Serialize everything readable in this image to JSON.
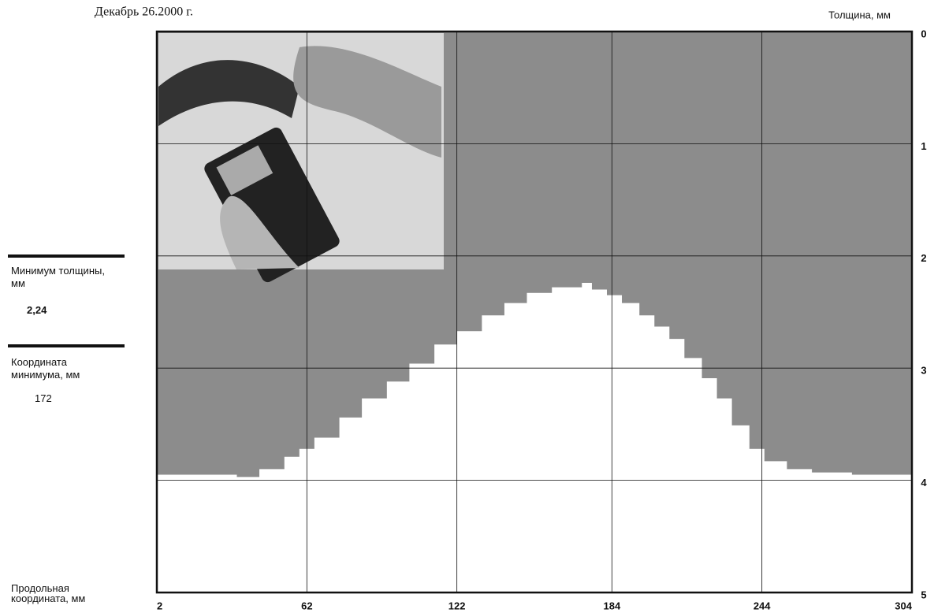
{
  "chart_data": {
    "type": "step-area",
    "date": "Декабрь 26.2000 г.",
    "y_title": "Толщина, мм",
    "x_title": "Продольная координата, мм",
    "summary": {
      "min_label": "Минимум толщины, мм",
      "min_value": "2,24",
      "coord_label": "Координата минимума, мм",
      "coord_value": "172"
    },
    "x": [
      2,
      15,
      34,
      43,
      53,
      59,
      65,
      75,
      84,
      94,
      103,
      113,
      122,
      132,
      141,
      150,
      160,
      172,
      176,
      182,
      188,
      195,
      201,
      207,
      213,
      220,
      226,
      232,
      239,
      245,
      254,
      264,
      280,
      304
    ],
    "values": [
      3.95,
      3.95,
      3.97,
      3.9,
      3.79,
      3.72,
      3.62,
      3.44,
      3.27,
      3.12,
      2.96,
      2.79,
      2.67,
      2.53,
      2.42,
      2.33,
      2.28,
      2.24,
      2.3,
      2.35,
      2.42,
      2.53,
      2.63,
      2.74,
      2.91,
      3.09,
      3.27,
      3.51,
      3.72,
      3.83,
      3.9,
      3.93,
      3.95,
      3.96
    ],
    "color": "#8c8c8c",
    "xlim": [
      2,
      304
    ],
    "xticks": [
      2,
      62,
      122,
      184,
      244,
      304
    ],
    "ylim": [
      0,
      5
    ],
    "yticks": [
      0,
      1,
      2,
      3,
      4,
      5
    ],
    "y_reversed": true,
    "grid": true
  }
}
